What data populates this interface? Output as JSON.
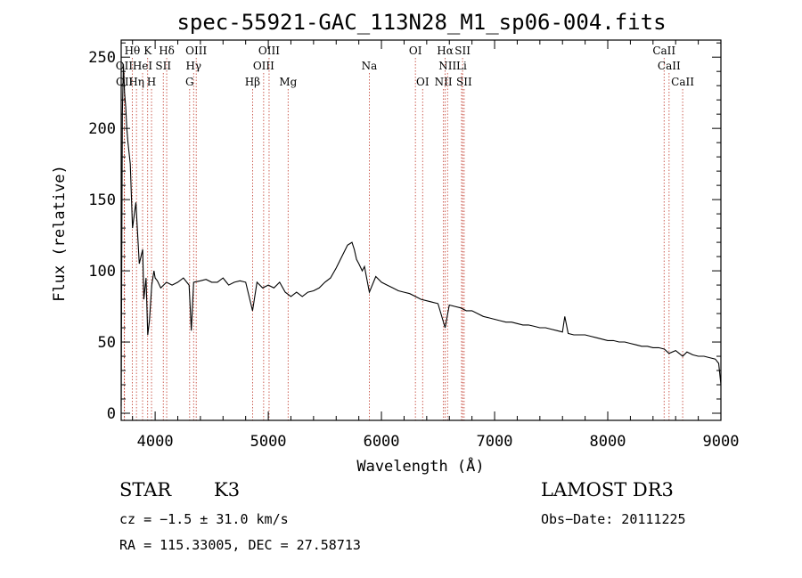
{
  "chart_data": {
    "type": "line",
    "title": "spec-55921-GAC_113N28_M1_sp06-004.fits",
    "xlabel": "Wavelength (Å)",
    "ylabel": "Flux (relative)",
    "xlim": [
      3700,
      9000
    ],
    "ylim": [
      -5,
      262
    ],
    "xticks": [
      4000,
      5000,
      6000,
      7000,
      8000,
      9000
    ],
    "xtick_labels": [
      "4000",
      "5000",
      "6000",
      "7000",
      "8000",
      "9000"
    ],
    "yticks": [
      0,
      50,
      100,
      150,
      200,
      250
    ],
    "ytick_labels": [
      "0",
      "50",
      "100",
      "150",
      "200",
      "250"
    ],
    "spectrum": {
      "wavelength": [
        3700,
        3710,
        3720,
        3730,
        3740,
        3750,
        3760,
        3780,
        3800,
        3830,
        3860,
        3890,
        3900,
        3920,
        3935,
        3950,
        3970,
        3990,
        4000,
        4020,
        4050,
        4100,
        4150,
        4200,
        4250,
        4300,
        4320,
        4340,
        4400,
        4450,
        4500,
        4550,
        4600,
        4650,
        4700,
        4750,
        4800,
        4861,
        4900,
        4950,
        5000,
        5050,
        5100,
        5150,
        5200,
        5250,
        5300,
        5350,
        5400,
        5450,
        5500,
        5550,
        5600,
        5650,
        5700,
        5740,
        5760,
        5780,
        5800,
        5830,
        5850,
        5893,
        5950,
        6000,
        6050,
        6100,
        6150,
        6200,
        6250,
        6300,
        6350,
        6400,
        6450,
        6500,
        6563,
        6600,
        6650,
        6700,
        6750,
        6800,
        6850,
        6900,
        6950,
        7000,
        7050,
        7100,
        7150,
        7200,
        7250,
        7300,
        7350,
        7400,
        7450,
        7500,
        7550,
        7600,
        7620,
        7650,
        7700,
        7750,
        7800,
        7850,
        7900,
        7950,
        8000,
        8050,
        8100,
        8150,
        8200,
        8250,
        8300,
        8350,
        8400,
        8450,
        8500,
        8542,
        8600,
        8662,
        8700,
        8750,
        8800,
        8850,
        8900,
        8950,
        8980,
        9000
      ],
      "flux": [
        5,
        210,
        245,
        225,
        215,
        200,
        190,
        175,
        130,
        148,
        105,
        115,
        80,
        95,
        55,
        65,
        90,
        100,
        95,
        93,
        88,
        92,
        90,
        92,
        95,
        90,
        58,
        92,
        93,
        94,
        92,
        92,
        95,
        90,
        92,
        93,
        92,
        72,
        92,
        88,
        90,
        88,
        92,
        85,
        82,
        85,
        82,
        85,
        86,
        88,
        92,
        95,
        102,
        110,
        118,
        120,
        115,
        108,
        105,
        100,
        103,
        85,
        96,
        92,
        90,
        88,
        86,
        85,
        84,
        82,
        80,
        79,
        78,
        77,
        60,
        76,
        75,
        74,
        72,
        72,
        70,
        68,
        67,
        66,
        65,
        64,
        64,
        63,
        62,
        62,
        61,
        60,
        60,
        59,
        58,
        57,
        68,
        56,
        55,
        55,
        55,
        54,
        53,
        52,
        51,
        51,
        50,
        50,
        49,
        48,
        47,
        47,
        46,
        46,
        45,
        42,
        44,
        40,
        43,
        41,
        40,
        40,
        39,
        38,
        35,
        20
      ]
    },
    "lines": [
      {
        "name": "Hθ",
        "wl": 3798,
        "row": 0
      },
      {
        "name": "K",
        "wl": 3934,
        "row": 0
      },
      {
        "name": "Hδ",
        "wl": 4102,
        "row": 0
      },
      {
        "name": "OIII",
        "wl": 4363,
        "row": 0
      },
      {
        "name": "OIII",
        "wl": 5007,
        "row": 0
      },
      {
        "name": "OI",
        "wl": 6300,
        "row": 0
      },
      {
        "name": "Hα",
        "wl": 6563,
        "row": 0
      },
      {
        "name": "SII",
        "wl": 6717,
        "row": 0
      },
      {
        "name": "CaII",
        "wl": 8498,
        "row": 0
      },
      {
        "name": "OII",
        "wl": 3727,
        "row": 1
      },
      {
        "name": "HeI",
        "wl": 3889,
        "row": 1
      },
      {
        "name": "SII",
        "wl": 4072,
        "row": 1
      },
      {
        "name": "Hγ",
        "wl": 4340,
        "row": 1
      },
      {
        "name": "OIII",
        "wl": 4959,
        "row": 1
      },
      {
        "name": "Na",
        "wl": 5893,
        "row": 1
      },
      {
        "name": "NII",
        "wl": 6584,
        "row": 1
      },
      {
        "name": "Li",
        "wl": 6708,
        "row": 1
      },
      {
        "name": "CaII",
        "wl": 8542,
        "row": 1
      },
      {
        "name": "OII",
        "wl": 3729,
        "row": 2
      },
      {
        "name": "Hη",
        "wl": 3835,
        "row": 2
      },
      {
        "name": "H",
        "wl": 3968,
        "row": 2
      },
      {
        "name": "G",
        "wl": 4305,
        "row": 2
      },
      {
        "name": "Hβ",
        "wl": 4861,
        "row": 2
      },
      {
        "name": "Mg",
        "wl": 5175,
        "row": 2
      },
      {
        "name": "OI",
        "wl": 6364,
        "row": 2
      },
      {
        "name": "NII",
        "wl": 6548,
        "row": 2
      },
      {
        "name": "SII",
        "wl": 6731,
        "row": 2
      },
      {
        "name": "CaII",
        "wl": 8662,
        "row": 2
      }
    ]
  },
  "info": {
    "class_label": "STAR",
    "subclass": "K3",
    "survey": "LAMOST DR3",
    "redshift": "cz = −1.5 ± 31.0 km/s",
    "obs_date": "Obs−Date: 20111225",
    "coords": "RA = 115.33005, DEC =  27.58713"
  },
  "colors": {
    "line_marker": "#c0392b",
    "spectrum": "#000000",
    "axis": "#000000"
  }
}
